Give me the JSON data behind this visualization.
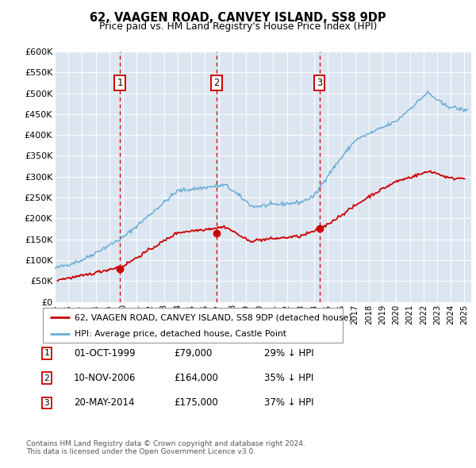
{
  "title": "62, VAAGEN ROAD, CANVEY ISLAND, SS8 9DP",
  "subtitle": "Price paid vs. HM Land Registry's House Price Index (HPI)",
  "plot_bg_color": "#dce6f1",
  "ylim": [
    0,
    600000
  ],
  "yticks": [
    0,
    50000,
    100000,
    150000,
    200000,
    250000,
    300000,
    350000,
    400000,
    450000,
    500000,
    550000,
    600000
  ],
  "ytick_labels": [
    "£0",
    "£50K",
    "£100K",
    "£150K",
    "£200K",
    "£250K",
    "£300K",
    "£350K",
    "£400K",
    "£450K",
    "£500K",
    "£550K",
    "£600K"
  ],
  "hpi_color": "#6baed6",
  "price_color": "#cc0000",
  "vline_color": "#cc0000",
  "sale1_date": 1999.75,
  "sale1_price": 79000,
  "sale1_label": "1",
  "sale2_date": 2006.86,
  "sale2_price": 164000,
  "sale2_label": "2",
  "sale3_date": 2014.38,
  "sale3_price": 175000,
  "sale3_label": "3",
  "xmin": 1995.0,
  "xmax": 2025.5,
  "xticks": [
    1995,
    1996,
    1997,
    1998,
    1999,
    2000,
    2001,
    2002,
    2003,
    2004,
    2005,
    2006,
    2007,
    2008,
    2009,
    2010,
    2011,
    2012,
    2013,
    2014,
    2015,
    2016,
    2017,
    2018,
    2019,
    2020,
    2021,
    2022,
    2023,
    2024,
    2025
  ],
  "footer1": "Contains HM Land Registry data © Crown copyright and database right 2024.",
  "footer2": "This data is licensed under the Open Government Licence v3.0.",
  "table_rows": [
    {
      "num": "1",
      "date": "01-OCT-1999",
      "price": "£79,000",
      "hpi": "29% ↓ HPI"
    },
    {
      "num": "2",
      "date": "10-NOV-2006",
      "price": "£164,000",
      "hpi": "35% ↓ HPI"
    },
    {
      "num": "3",
      "date": "20-MAY-2014",
      "price": "£175,000",
      "hpi": "37% ↓ HPI"
    }
  ],
  "legend_line1": "62, VAAGEN ROAD, CANVEY ISLAND, SS8 9DP (detached house)",
  "legend_line2": "HPI: Average price, detached house, Castle Point"
}
